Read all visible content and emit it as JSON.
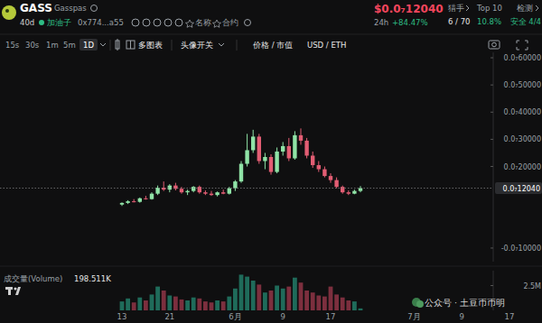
{
  "header": {
    "symbol": "GASS",
    "name": "Gasspas",
    "age": "40d",
    "creator": "加油子",
    "address": "0x774...a55",
    "favorite_name": "名称",
    "favorite_contract": "合约",
    "price": "$0.0₇12040",
    "change_label": "24h",
    "change": "+84.47%",
    "hunters_label": "猎手",
    "hunters": "6 / 70",
    "top10_label": "Top 10",
    "top10": "10.8%",
    "check_label": "检测",
    "check": "安全 4/4"
  },
  "toolbar": {
    "intervals": [
      "15s",
      "30s",
      "1m",
      "5m",
      "1D"
    ],
    "multi_chart": "多图表",
    "avatar_toggle": "头像开关",
    "price_mcap": "价格 / 市值",
    "currency": "USD / ETH"
  },
  "watermark": "公众号 · 土豆币币明",
  "chart_data": {
    "type": "candlestick",
    "categories": [
      "13",
      null,
      null,
      null,
      null,
      null,
      null,
      null,
      "21",
      null,
      null,
      null,
      null,
      null,
      null,
      null,
      null,
      null,
      null,
      "6月",
      null,
      null,
      null,
      null,
      null,
      null,
      null,
      "9",
      null,
      null,
      null,
      null,
      null,
      null,
      null,
      "17",
      null,
      null,
      null,
      null,
      null,
      null,
      null,
      null,
      null,
      null,
      null,
      null,
      null,
      "7月",
      null,
      null,
      null,
      null,
      null,
      null,
      null,
      "9",
      null,
      null,
      null,
      null,
      null,
      null,
      null,
      "17",
      null,
      null
    ],
    "open": [
      6e-09,
      6.6e-09,
      7.2e-09,
      7e-09,
      8.3e-09,
      8e-09,
      1e-08,
      1.22e-08,
      1.15e-08,
      1.3e-08,
      1.18e-08,
      1.05e-08,
      1.1e-08,
      1.25e-08,
      1.05e-08,
      1e-08,
      9.5e-09,
      1.05e-08,
      1e-08,
      1.2e-08,
      1.45e-08,
      2.1e-08,
      2.6e-08,
      3.1e-08,
      2.2e-08,
      2.35e-08,
      1.8e-08,
      2.55e-08,
      2.75e-08,
      2.3e-08,
      3.15e-08,
      2.95e-08,
      2.4e-08,
      2.05e-08,
      1.9e-08,
      1.65e-08,
      1.5e-08,
      1.25e-08,
      1.05e-08,
      1e-08,
      1.1e-08,
      null,
      null,
      null,
      null,
      null,
      null,
      null,
      null,
      null,
      null,
      null,
      null,
      null,
      null,
      null,
      null,
      null,
      null,
      null,
      null,
      null,
      null,
      null,
      null,
      null,
      null,
      null
    ],
    "high": [
      6.8e-09,
      7.6e-09,
      8e-09,
      8.6e-09,
      9.2e-09,
      1.05e-08,
      1.3e-08,
      1.45e-08,
      1.35e-08,
      1.4e-08,
      1.25e-08,
      1.15e-08,
      1.28e-08,
      1.3e-08,
      1.12e-08,
      1.1e-08,
      1.08e-08,
      1.15e-08,
      1.25e-08,
      1.5e-08,
      2.2e-08,
      3.2e-08,
      3.35e-08,
      3.2e-08,
      2.5e-08,
      2.45e-08,
      2.7e-08,
      2.9e-08,
      3.05e-08,
      3.3e-08,
      3.4e-08,
      3.05e-08,
      2.55e-08,
      2.2e-08,
      2e-08,
      1.75e-08,
      1.6e-08,
      1.3e-08,
      1.12e-08,
      1.15e-08,
      1.28e-08,
      null,
      null,
      null,
      null,
      null,
      null,
      null,
      null,
      null,
      null,
      null,
      null,
      null,
      null,
      null,
      null,
      null,
      null,
      null,
      null,
      null,
      null,
      null,
      null,
      null,
      null,
      null
    ],
    "low": [
      5.5e-09,
      6.2e-09,
      6.8e-09,
      6.7e-09,
      7.8e-09,
      7.8e-09,
      9.5e-09,
      1.1e-08,
      1.05e-08,
      1.12e-08,
      1e-08,
      9.5e-09,
      1.05e-08,
      1e-08,
      9.5e-09,
      9.2e-09,
      9e-09,
      9.8e-09,
      9.7e-09,
      1.1e-08,
      1.4e-08,
      2e-08,
      2.5e-08,
      2.1e-08,
      1.9e-08,
      1.7e-08,
      1.75e-08,
      2.4e-08,
      2.2e-08,
      2.25e-08,
      2.8e-08,
      2.3e-08,
      1.95e-08,
      1.8e-08,
      1.6e-08,
      1.4e-08,
      1.2e-08,
      1e-08,
      9.5e-09,
      9.8e-09,
      1.05e-08,
      null,
      null,
      null,
      null,
      null,
      null,
      null,
      null,
      null,
      null,
      null,
      null,
      null,
      null,
      null,
      null,
      null,
      null,
      null,
      null,
      null,
      null,
      null,
      null,
      null,
      null,
      null
    ],
    "close": [
      6.6e-09,
      7.2e-09,
      7e-09,
      8.3e-09,
      8e-09,
      1e-08,
      1.22e-08,
      1.15e-08,
      1.3e-08,
      1.18e-08,
      1.05e-08,
      1.1e-08,
      1.25e-08,
      1.05e-08,
      1e-08,
      9.5e-09,
      1.05e-08,
      1e-08,
      1.2e-08,
      1.45e-08,
      2.1e-08,
      2.6e-08,
      3.1e-08,
      2.2e-08,
      2.35e-08,
      1.8e-08,
      2.55e-08,
      2.75e-08,
      2.3e-08,
      3.15e-08,
      2.95e-08,
      2.4e-08,
      2.05e-08,
      1.9e-08,
      1.65e-08,
      1.5e-08,
      1.25e-08,
      1.05e-08,
      1e-08,
      1.1e-08,
      1.204e-08,
      null,
      null,
      null,
      null,
      null,
      null,
      null,
      null,
      null,
      null,
      null,
      null,
      null,
      null,
      null,
      null,
      null,
      null,
      null,
      null,
      null,
      null,
      null,
      null,
      null,
      null,
      null
    ],
    "ylim": [
      -1.5e-08,
      6.2e-08
    ],
    "yticks": [
      {
        "value": 6e-08,
        "label": "0.0₇60000"
      },
      {
        "value": 5e-08,
        "label": "0.0₇50000"
      },
      {
        "value": 4e-08,
        "label": "0.0₇40000"
      },
      {
        "value": 3e-08,
        "label": "0.0₇30000"
      },
      {
        "value": 2e-08,
        "label": "0.0₇20000"
      },
      {
        "value": -1e-08,
        "label": "-0.0₇10000"
      }
    ],
    "annotations": [
      {
        "value": 1.204e-08,
        "label": "0.0₇12040"
      }
    ],
    "grid": false,
    "volume": {
      "title": "成交量(Volume)",
      "values": [
        900000,
        1200000,
        800000,
        1300000,
        1000000,
        1600000,
        2400000,
        2000000,
        1500000,
        1400000,
        1100000,
        1000000,
        1300000,
        1200000,
        900000,
        800000,
        1000000,
        900000,
        1400000,
        2200000,
        3600000,
        3400000,
        3000000,
        2600000,
        1800000,
        2000000,
        2500000,
        2200000,
        2400000,
        3300000,
        2800000,
        2000000,
        1800000,
        1500000,
        1400000,
        2400000,
        1600000,
        1300000,
        1000000,
        900000,
        198511,
        null,
        null,
        null,
        null,
        null,
        null,
        null,
        null,
        null,
        null,
        null,
        null,
        null,
        null,
        null,
        null,
        null,
        null,
        null,
        null,
        null,
        null,
        null,
        null,
        null,
        null,
        null
      ],
      "ylim": [
        0,
        4000000
      ],
      "yticks": [
        {
          "value": 2500000,
          "label": "2.5M"
        }
      ],
      "current": {
        "value": 198511,
        "label": "198.511K"
      }
    }
  }
}
